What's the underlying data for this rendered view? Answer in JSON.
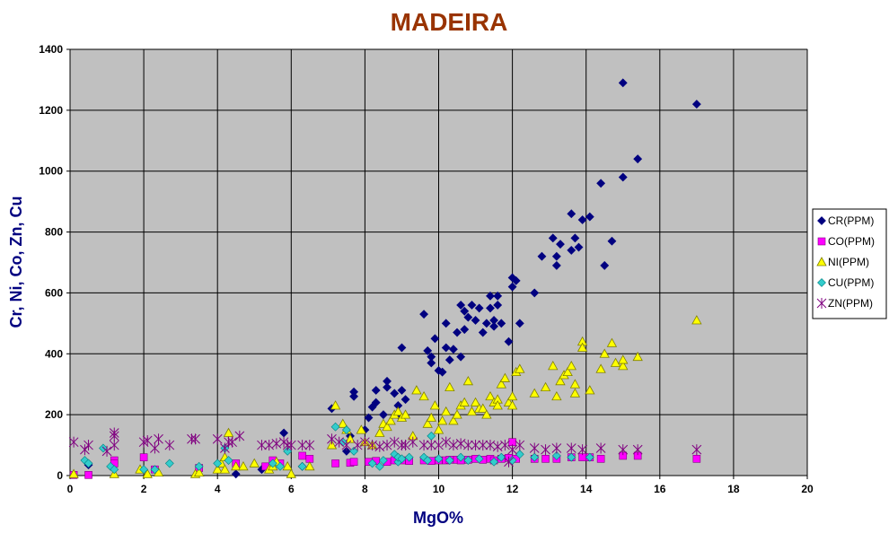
{
  "chart_data": {
    "type": "scatter",
    "title": "MADEIRA",
    "xlabel": "MgO%",
    "ylabel": "Cr, Ni, Co, Zn, Cu",
    "xlim": [
      0,
      20
    ],
    "ylim": [
      0,
      1400
    ],
    "xticks": [
      0,
      2,
      4,
      6,
      8,
      10,
      12,
      14,
      16,
      18,
      20
    ],
    "yticks": [
      0,
      200,
      400,
      600,
      800,
      1000,
      1200,
      1400
    ],
    "grid": true,
    "plot_background": "#c0c0c0",
    "legend_position": "right",
    "series": [
      {
        "name": "CR(PPM)",
        "marker": "diamond",
        "color": "#000080",
        "points": [
          [
            0.5,
            35
          ],
          [
            4.5,
            5
          ],
          [
            5.2,
            20
          ],
          [
            5.8,
            140
          ],
          [
            6.3,
            30
          ],
          [
            7.1,
            220
          ],
          [
            7.5,
            80
          ],
          [
            7.6,
            130
          ],
          [
            7.7,
            260
          ],
          [
            7.7,
            275
          ],
          [
            8.0,
            150
          ],
          [
            8.1,
            190
          ],
          [
            8.2,
            225
          ],
          [
            8.3,
            280
          ],
          [
            8.3,
            240
          ],
          [
            8.5,
            200
          ],
          [
            8.6,
            310
          ],
          [
            8.6,
            290
          ],
          [
            8.8,
            270
          ],
          [
            8.9,
            230
          ],
          [
            8.9,
            200
          ],
          [
            9.0,
            280
          ],
          [
            9.0,
            420
          ],
          [
            9.1,
            250
          ],
          [
            9.6,
            530
          ],
          [
            9.7,
            410
          ],
          [
            9.8,
            390
          ],
          [
            9.8,
            370
          ],
          [
            9.9,
            450
          ],
          [
            10.0,
            345
          ],
          [
            10.1,
            340
          ],
          [
            10.2,
            420
          ],
          [
            10.2,
            500
          ],
          [
            10.3,
            380
          ],
          [
            10.4,
            415
          ],
          [
            10.5,
            470
          ],
          [
            10.6,
            390
          ],
          [
            10.6,
            560
          ],
          [
            10.7,
            540
          ],
          [
            10.7,
            480
          ],
          [
            10.8,
            520
          ],
          [
            10.9,
            560
          ],
          [
            11.0,
            510
          ],
          [
            11.1,
            550
          ],
          [
            11.2,
            470
          ],
          [
            11.3,
            500
          ],
          [
            11.4,
            590
          ],
          [
            11.4,
            550
          ],
          [
            11.5,
            510
          ],
          [
            11.5,
            490
          ],
          [
            11.6,
            590
          ],
          [
            11.6,
            560
          ],
          [
            11.7,
            500
          ],
          [
            11.9,
            440
          ],
          [
            12.0,
            650
          ],
          [
            12.0,
            620
          ],
          [
            12.1,
            640
          ],
          [
            12.2,
            500
          ],
          [
            12.6,
            600
          ],
          [
            12.8,
            720
          ],
          [
            13.1,
            780
          ],
          [
            13.2,
            720
          ],
          [
            13.2,
            690
          ],
          [
            13.3,
            760
          ],
          [
            13.6,
            860
          ],
          [
            13.6,
            740
          ],
          [
            13.7,
            780
          ],
          [
            13.8,
            750
          ],
          [
            13.9,
            840
          ],
          [
            14.1,
            850
          ],
          [
            14.4,
            960
          ],
          [
            14.5,
            690
          ],
          [
            14.7,
            770
          ],
          [
            15.0,
            980
          ],
          [
            15.0,
            1290
          ],
          [
            15.4,
            1040
          ],
          [
            17.0,
            1220
          ]
        ]
      },
      {
        "name": "CO(PPM)",
        "marker": "square",
        "color": "#ff00ff",
        "points": [
          [
            0.1,
            2
          ],
          [
            0.5,
            2
          ],
          [
            1.2,
            50
          ],
          [
            1.2,
            40
          ],
          [
            2.0,
            60
          ],
          [
            2.3,
            20
          ],
          [
            3.5,
            25
          ],
          [
            4.5,
            40
          ],
          [
            5.3,
            30
          ],
          [
            5.5,
            50
          ],
          [
            5.7,
            40
          ],
          [
            6.3,
            65
          ],
          [
            6.5,
            55
          ],
          [
            7.2,
            40
          ],
          [
            7.6,
            42
          ],
          [
            7.7,
            45
          ],
          [
            8.1,
            45
          ],
          [
            8.3,
            48
          ],
          [
            8.6,
            45
          ],
          [
            8.8,
            50
          ],
          [
            9.0,
            50
          ],
          [
            9.2,
            48
          ],
          [
            9.6,
            50
          ],
          [
            9.8,
            48
          ],
          [
            10.0,
            50
          ],
          [
            10.2,
            50
          ],
          [
            10.3,
            52
          ],
          [
            10.5,
            52
          ],
          [
            10.6,
            50
          ],
          [
            10.8,
            52
          ],
          [
            11.0,
            55
          ],
          [
            11.2,
            52
          ],
          [
            11.4,
            55
          ],
          [
            11.5,
            50
          ],
          [
            11.7,
            55
          ],
          [
            11.9,
            58
          ],
          [
            12.0,
            110
          ],
          [
            12.1,
            55
          ],
          [
            12.6,
            55
          ],
          [
            12.9,
            55
          ],
          [
            13.2,
            55
          ],
          [
            13.6,
            60
          ],
          [
            13.9,
            60
          ],
          [
            14.1,
            60
          ],
          [
            14.4,
            55
          ],
          [
            15.0,
            65
          ],
          [
            15.4,
            65
          ],
          [
            17.0,
            55
          ]
        ]
      },
      {
        "name": "NI(PPM)",
        "marker": "triangle",
        "color": "#ffff00",
        "points": [
          [
            0.1,
            5
          ],
          [
            1.2,
            5
          ],
          [
            1.9,
            20
          ],
          [
            2.1,
            5
          ],
          [
            2.4,
            10
          ],
          [
            3.4,
            5
          ],
          [
            3.5,
            10
          ],
          [
            4.0,
            20
          ],
          [
            4.1,
            40
          ],
          [
            4.2,
            60
          ],
          [
            4.2,
            20
          ],
          [
            4.3,
            140
          ],
          [
            4.5,
            30
          ],
          [
            4.7,
            30
          ],
          [
            5.0,
            40
          ],
          [
            5.4,
            20
          ],
          [
            5.5,
            30
          ],
          [
            5.6,
            45
          ],
          [
            5.9,
            30
          ],
          [
            6.0,
            5
          ],
          [
            6.5,
            30
          ],
          [
            7.1,
            100
          ],
          [
            7.2,
            230
          ],
          [
            7.4,
            170
          ],
          [
            7.5,
            150
          ],
          [
            7.6,
            120
          ],
          [
            7.9,
            150
          ],
          [
            8.0,
            110
          ],
          [
            8.2,
            100
          ],
          [
            8.4,
            140
          ],
          [
            8.5,
            170
          ],
          [
            8.6,
            160
          ],
          [
            8.7,
            180
          ],
          [
            8.8,
            200
          ],
          [
            8.9,
            210
          ],
          [
            9.0,
            190
          ],
          [
            9.1,
            200
          ],
          [
            9.3,
            130
          ],
          [
            9.4,
            280
          ],
          [
            9.6,
            260
          ],
          [
            9.7,
            170
          ],
          [
            9.8,
            190
          ],
          [
            9.9,
            230
          ],
          [
            10.0,
            150
          ],
          [
            10.1,
            180
          ],
          [
            10.2,
            210
          ],
          [
            10.3,
            290
          ],
          [
            10.4,
            180
          ],
          [
            10.5,
            200
          ],
          [
            10.6,
            230
          ],
          [
            10.7,
            240
          ],
          [
            10.8,
            310
          ],
          [
            10.9,
            210
          ],
          [
            11.0,
            240
          ],
          [
            11.1,
            220
          ],
          [
            11.2,
            220
          ],
          [
            11.3,
            200
          ],
          [
            11.4,
            260
          ],
          [
            11.5,
            240
          ],
          [
            11.6,
            250
          ],
          [
            11.6,
            230
          ],
          [
            11.7,
            300
          ],
          [
            11.8,
            320
          ],
          [
            11.9,
            240
          ],
          [
            12.0,
            230
          ],
          [
            12.0,
            260
          ],
          [
            12.1,
            340
          ],
          [
            12.2,
            350
          ],
          [
            12.6,
            270
          ],
          [
            12.9,
            290
          ],
          [
            13.1,
            360
          ],
          [
            13.2,
            260
          ],
          [
            13.3,
            310
          ],
          [
            13.4,
            330
          ],
          [
            13.5,
            340
          ],
          [
            13.6,
            360
          ],
          [
            13.7,
            300
          ],
          [
            13.7,
            270
          ],
          [
            13.9,
            440
          ],
          [
            13.9,
            420
          ],
          [
            14.1,
            280
          ],
          [
            14.4,
            350
          ],
          [
            14.5,
            400
          ],
          [
            14.7,
            435
          ],
          [
            14.8,
            370
          ],
          [
            15.0,
            360
          ],
          [
            15.0,
            380
          ],
          [
            15.4,
            390
          ],
          [
            17.0,
            510
          ]
        ]
      },
      {
        "name": "CU(PPM)",
        "marker": "diamond",
        "color": "#33cccc",
        "points": [
          [
            0.4,
            50
          ],
          [
            0.5,
            40
          ],
          [
            0.9,
            90
          ],
          [
            1.1,
            30
          ],
          [
            1.2,
            20
          ],
          [
            2.0,
            20
          ],
          [
            2.3,
            20
          ],
          [
            2.7,
            40
          ],
          [
            3.5,
            30
          ],
          [
            4.0,
            40
          ],
          [
            4.2,
            90
          ],
          [
            4.3,
            50
          ],
          [
            5.5,
            40
          ],
          [
            5.7,
            30
          ],
          [
            5.9,
            80
          ],
          [
            6.3,
            30
          ],
          [
            7.2,
            160
          ],
          [
            7.4,
            110
          ],
          [
            7.5,
            150
          ],
          [
            7.7,
            80
          ],
          [
            8.2,
            40
          ],
          [
            8.4,
            30
          ],
          [
            8.5,
            50
          ],
          [
            8.8,
            70
          ],
          [
            8.9,
            45
          ],
          [
            8.9,
            60
          ],
          [
            9.0,
            55
          ],
          [
            9.2,
            60
          ],
          [
            9.6,
            60
          ],
          [
            9.7,
            50
          ],
          [
            9.8,
            130
          ],
          [
            10.0,
            55
          ],
          [
            10.3,
            50
          ],
          [
            10.6,
            60
          ],
          [
            10.8,
            50
          ],
          [
            11.1,
            55
          ],
          [
            11.5,
            45
          ],
          [
            11.7,
            60
          ],
          [
            12.0,
            50
          ],
          [
            12.2,
            70
          ],
          [
            12.6,
            60
          ],
          [
            13.2,
            65
          ],
          [
            13.6,
            60
          ],
          [
            14.1,
            60
          ]
        ]
      },
      {
        "name": "ZN(PPM)",
        "marker": "star",
        "color": "#800080",
        "points": [
          [
            0.1,
            110
          ],
          [
            0.4,
            85
          ],
          [
            0.5,
            100
          ],
          [
            1.0,
            80
          ],
          [
            1.2,
            100
          ],
          [
            1.2,
            140
          ],
          [
            1.2,
            130
          ],
          [
            2.0,
            110
          ],
          [
            2.1,
            115
          ],
          [
            2.3,
            90
          ],
          [
            2.4,
            120
          ],
          [
            2.7,
            100
          ],
          [
            3.3,
            120
          ],
          [
            3.4,
            120
          ],
          [
            4.0,
            120
          ],
          [
            4.2,
            90
          ],
          [
            4.3,
            110
          ],
          [
            4.4,
            110
          ],
          [
            4.6,
            130
          ],
          [
            5.2,
            100
          ],
          [
            5.4,
            100
          ],
          [
            5.6,
            105
          ],
          [
            5.8,
            110
          ],
          [
            5.9,
            100
          ],
          [
            6.0,
            100
          ],
          [
            6.3,
            100
          ],
          [
            6.5,
            100
          ],
          [
            7.1,
            120
          ],
          [
            7.3,
            110
          ],
          [
            7.5,
            100
          ],
          [
            7.8,
            100
          ],
          [
            8.0,
            110
          ],
          [
            8.2,
            100
          ],
          [
            8.4,
            95
          ],
          [
            8.6,
            100
          ],
          [
            8.8,
            110
          ],
          [
            9.0,
            100
          ],
          [
            9.1,
            100
          ],
          [
            9.3,
            110
          ],
          [
            9.6,
            100
          ],
          [
            9.8,
            100
          ],
          [
            10.0,
            100
          ],
          [
            10.2,
            110
          ],
          [
            10.4,
            100
          ],
          [
            10.6,
            105
          ],
          [
            10.8,
            100
          ],
          [
            11.0,
            100
          ],
          [
            11.2,
            100
          ],
          [
            11.4,
            100
          ],
          [
            11.6,
            95
          ],
          [
            11.8,
            100
          ],
          [
            11.9,
            45
          ],
          [
            12.0,
            85
          ],
          [
            12.2,
            100
          ],
          [
            12.6,
            90
          ],
          [
            12.9,
            85
          ],
          [
            13.2,
            90
          ],
          [
            13.6,
            90
          ],
          [
            13.9,
            85
          ],
          [
            14.4,
            90
          ],
          [
            15.0,
            85
          ],
          [
            15.4,
            85
          ],
          [
            17.0,
            85
          ]
        ]
      }
    ]
  }
}
